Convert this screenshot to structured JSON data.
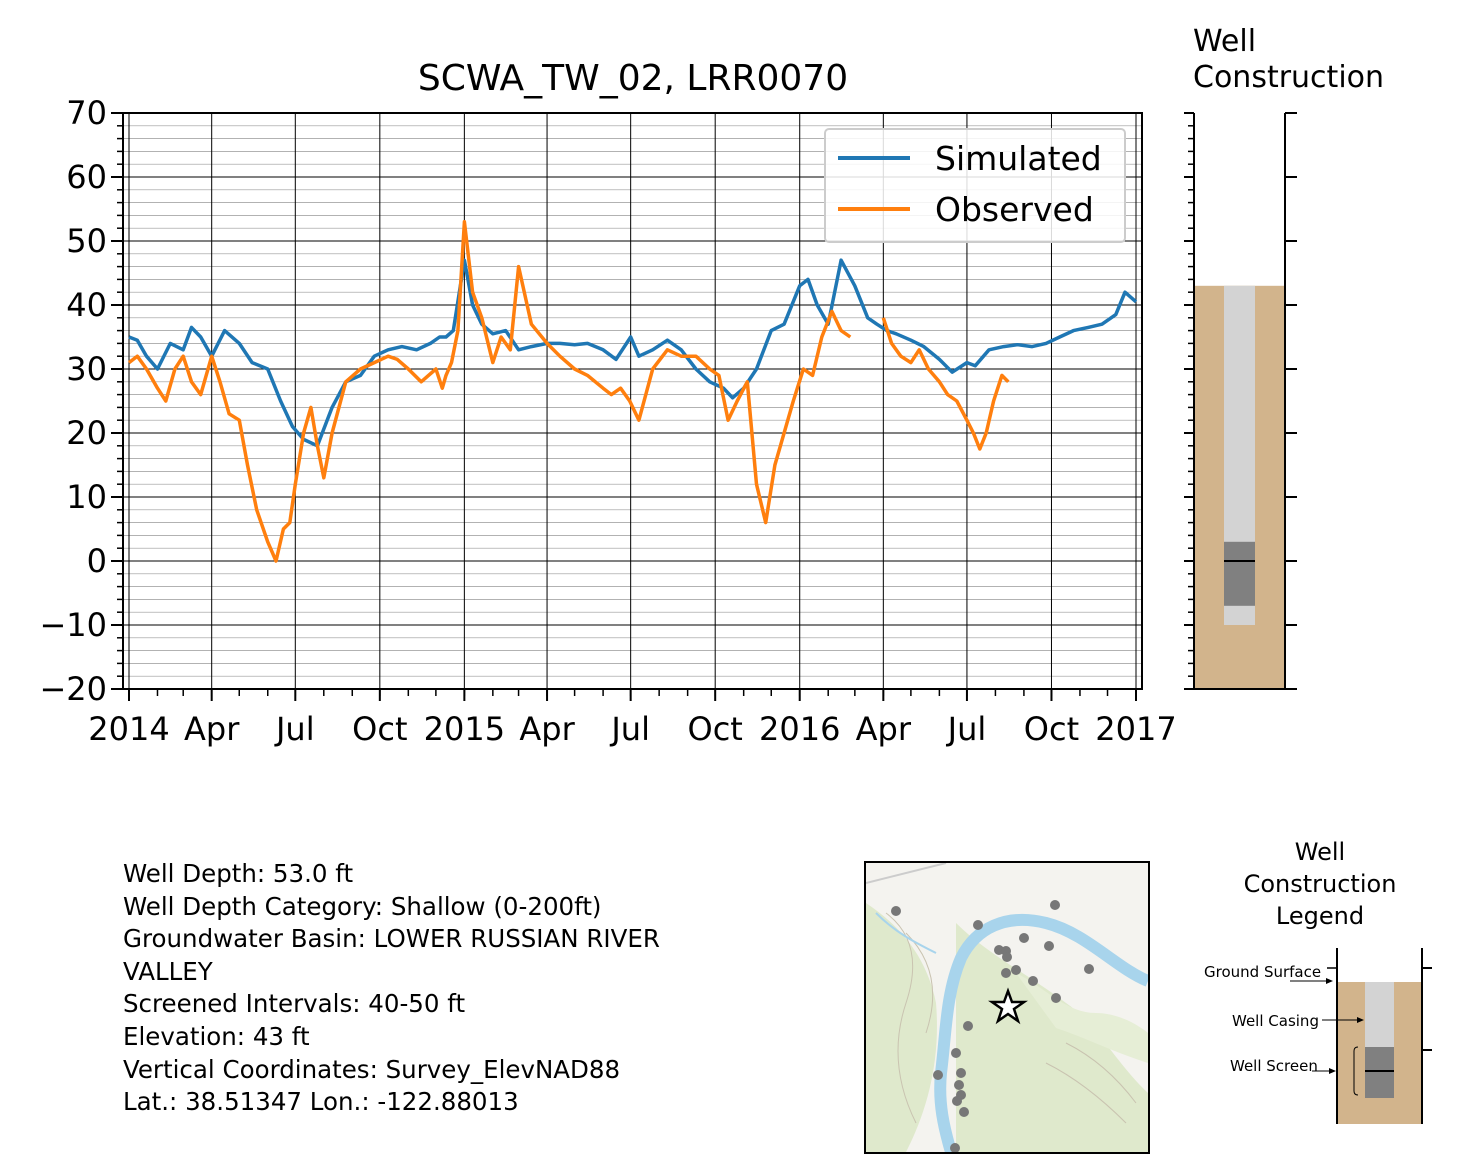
{
  "chart_data": {
    "type": "line",
    "title": "SCWA_TW_02, LRR0070",
    "xlabel": "",
    "ylabel": "",
    "ylim": [
      -20,
      70
    ],
    "xlim": [
      "2014-01-01",
      "2017-01-01"
    ],
    "yticks": [
      -20,
      -10,
      0,
      10,
      20,
      30,
      40,
      50,
      60,
      70
    ],
    "xtick_labels": [
      "2014",
      "Apr",
      "Jul",
      "Oct",
      "2015",
      "Apr",
      "Jul",
      "Oct",
      "2016",
      "Apr",
      "Jul",
      "Oct",
      "2017"
    ],
    "xtick_dates": [
      "2014-01-01",
      "2014-04-01",
      "2014-07-01",
      "2014-10-01",
      "2015-01-01",
      "2015-04-01",
      "2015-07-01",
      "2015-10-01",
      "2016-01-01",
      "2016-04-01",
      "2016-07-01",
      "2016-10-01",
      "2017-01-01"
    ],
    "grid": true,
    "legend_position": "top-right",
    "series": [
      {
        "name": "Simulated",
        "color": "#1f77b4",
        "x": [
          "2014-01-01",
          "2014-01-10",
          "2014-01-20",
          "2014-02-01",
          "2014-02-15",
          "2014-03-01",
          "2014-03-10",
          "2014-03-20",
          "2014-04-01",
          "2014-04-15",
          "2014-05-01",
          "2014-05-15",
          "2014-06-01",
          "2014-06-15",
          "2014-06-28",
          "2014-07-10",
          "2014-07-25",
          "2014-08-10",
          "2014-08-25",
          "2014-09-10",
          "2014-09-25",
          "2014-10-10",
          "2014-10-25",
          "2014-11-10",
          "2014-11-25",
          "2014-12-05",
          "2014-12-12",
          "2014-12-20",
          "2015-01-01",
          "2015-01-10",
          "2015-01-20",
          "2015-02-01",
          "2015-02-15",
          "2015-03-01",
          "2015-03-15",
          "2015-04-01",
          "2015-04-15",
          "2015-05-01",
          "2015-05-15",
          "2015-06-01",
          "2015-06-15",
          "2015-07-01",
          "2015-07-10",
          "2015-07-25",
          "2015-08-10",
          "2015-08-25",
          "2015-09-10",
          "2015-09-25",
          "2015-10-10",
          "2015-10-20",
          "2015-11-01",
          "2015-11-15",
          "2015-12-01",
          "2015-12-15",
          "2016-01-01",
          "2016-01-10",
          "2016-01-20",
          "2016-02-01",
          "2016-02-15",
          "2016-03-01",
          "2016-03-15",
          "2016-03-25",
          "2016-04-05",
          "2016-04-15",
          "2016-05-01",
          "2016-05-15",
          "2016-06-01",
          "2016-06-15",
          "2016-07-01",
          "2016-07-10",
          "2016-07-25",
          "2016-08-10",
          "2016-08-25",
          "2016-09-10",
          "2016-09-25",
          "2016-10-10",
          "2016-10-25",
          "2016-11-10",
          "2016-11-25",
          "2016-12-10",
          "2016-12-20",
          "2017-01-01"
        ],
        "values": [
          35,
          34.5,
          32,
          30,
          34,
          33,
          36.5,
          35,
          32,
          36,
          34,
          31,
          30,
          25,
          21,
          19,
          18,
          24,
          28,
          29,
          32,
          33,
          33.5,
          33,
          34,
          35,
          35,
          36,
          47,
          40,
          37,
          35.5,
          36,
          33,
          33.5,
          34,
          34,
          33.8,
          34,
          33,
          31.5,
          35,
          32,
          33,
          34.5,
          33,
          30,
          28,
          27,
          25.5,
          27,
          30,
          36,
          37,
          43,
          44,
          40,
          37,
          47,
          43,
          38,
          37,
          36,
          35.5,
          34.5,
          33.5,
          31.5,
          29.5,
          31,
          30.5,
          33,
          33.5,
          33.8,
          33.5,
          34,
          35,
          36,
          36.5,
          37,
          38.5,
          42,
          40.5
        ]
      },
      {
        "name": "Observed",
        "color": "#ff7f0e",
        "x": [
          "2014-01-01",
          "2014-01-10",
          "2014-01-20",
          "2014-02-01",
          "2014-02-10",
          "2014-02-20",
          "2014-03-01",
          "2014-03-10",
          "2014-03-20",
          "2014-04-01",
          "2014-04-10",
          "2014-04-20",
          "2014-05-01",
          "2014-05-10",
          "2014-05-20",
          "2014-06-01",
          "2014-06-10",
          "2014-06-18",
          "2014-06-25",
          "2014-07-01",
          "2014-07-10",
          "2014-07-18",
          "2014-07-25",
          "2014-08-01",
          "2014-08-10",
          "2014-08-25",
          "2014-09-10",
          "2014-09-25",
          "2014-10-10",
          "2014-10-20",
          "2014-11-01",
          "2014-11-15",
          "2014-12-01",
          "2014-12-08",
          "2014-12-12",
          "2014-12-18",
          "2014-12-25",
          "2015-01-01",
          "2015-01-10",
          "2015-01-20",
          "2015-02-01",
          "2015-02-10",
          "2015-02-20",
          "2015-03-01",
          "2015-03-15",
          "2015-04-01",
          "2015-04-15",
          "2015-05-01",
          "2015-05-15",
          "2015-06-01",
          "2015-06-10",
          "2015-06-20",
          "2015-06-30",
          "2015-07-10",
          "2015-07-25",
          "2015-08-10",
          "2015-08-25",
          "2015-09-10",
          "2015-09-25",
          "2015-10-05",
          "2015-10-15",
          "2015-10-25",
          "2015-11-05",
          "2015-11-15",
          "2015-11-25",
          "2015-12-05",
          "2015-12-15",
          "2015-12-25",
          "2016-01-05",
          "2016-01-15",
          "2016-01-25",
          "2016-02-05",
          "2016-02-15",
          "2016-02-25"
        ],
        "values": [
          31,
          32,
          30,
          27,
          25,
          30,
          32,
          28,
          26,
          32,
          28,
          23,
          22,
          15,
          8,
          3,
          0,
          5,
          6,
          12,
          20,
          24,
          18,
          13,
          20,
          28,
          30,
          31,
          32,
          31.5,
          30,
          28,
          30,
          27,
          29,
          31,
          36,
          53,
          42,
          38,
          31,
          35,
          33,
          46,
          37,
          34,
          32,
          30,
          29,
          27,
          26,
          27,
          25,
          22,
          30,
          33,
          32,
          32,
          30,
          29,
          22,
          25,
          28,
          12,
          6,
          15,
          20,
          25,
          30,
          29,
          35,
          39,
          36,
          35
        ]
      },
      {
        "name": "Observed",
        "color": "#ff7f0e",
        "x": [
          "2016-04-01",
          "2016-04-10",
          "2016-04-20",
          "2016-05-01",
          "2016-05-10",
          "2016-05-20",
          "2016-06-01",
          "2016-06-10",
          "2016-06-20",
          "2016-07-01",
          "2016-07-08",
          "2016-07-15",
          "2016-07-22",
          "2016-07-30",
          "2016-08-08",
          "2016-08-15"
        ],
        "values": [
          38,
          34,
          32,
          31,
          33,
          30,
          28,
          26,
          25,
          22,
          20,
          17.5,
          20,
          25,
          29,
          28
        ]
      }
    ]
  },
  "well_construction": {
    "title": "Well\nConstruction",
    "ground_surface_elev": 43,
    "casing_bottom": -10,
    "screen_top": 3,
    "screen_bottom": -7,
    "water_level_mark": 0
  },
  "info": {
    "well_depth": "Well Depth: 53.0 ft",
    "depth_category": "Well Depth Category: Shallow (0-200ft)",
    "basin_line1": "Groundwater Basin: LOWER RUSSIAN RIVER",
    "basin_line2": "VALLEY",
    "screened": "Screened Intervals: 40-50 ft",
    "elevation": "Elevation: 43 ft",
    "vertical": "Vertical Coordinates: Survey_ElevNAD88",
    "latlon": "Lat.: 38.51347 Lon.: -122.88013"
  },
  "legend_box": {
    "title": "Well Construction Legend",
    "ground_surface": "Ground Surface",
    "well_casing": "Well Casing",
    "well_screen": "Well Screen"
  },
  "colors": {
    "soil": "#d2b48c",
    "casing": "#d3d3d3",
    "screen": "#808080",
    "river": "#a8d4ec",
    "terrain": "#dfe9cc"
  }
}
